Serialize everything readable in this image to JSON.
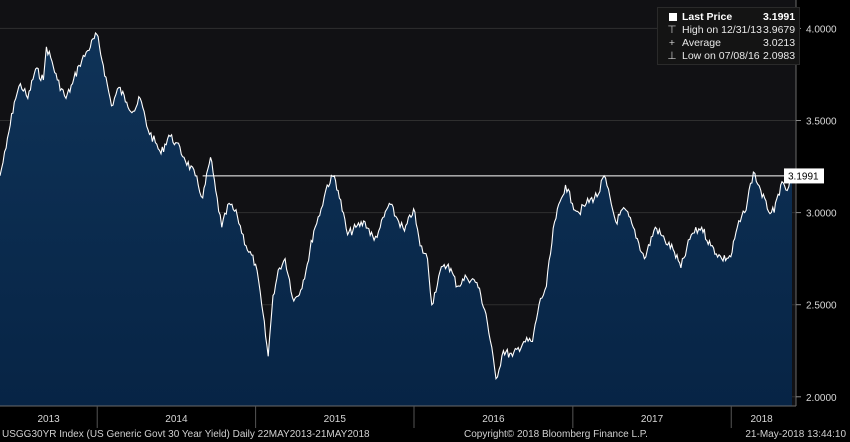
{
  "chart_data": {
    "type": "area",
    "x_start": "2013-05-22",
    "x_end": "2018-05-21",
    "ylim": [
      1.95,
      4.1
    ],
    "yticks": [
      2.0,
      2.5,
      3.0,
      3.5,
      4.0
    ],
    "ytick_labels": [
      "2.0000",
      "2.5000",
      "3.0000",
      "3.5000",
      "4.0000"
    ],
    "xticks": [
      "2013",
      "2014",
      "2015",
      "2016",
      "2017",
      "2018"
    ],
    "last_price_label": "3.1991",
    "last_price_value": 3.1991,
    "points": [
      [
        "2013-05-22",
        3.2
      ],
      [
        "2013-06-05",
        3.35
      ],
      [
        "2013-06-24",
        3.6
      ],
      [
        "2013-07-08",
        3.7
      ],
      [
        "2013-07-25",
        3.62
      ],
      [
        "2013-08-12",
        3.78
      ],
      [
        "2013-08-30",
        3.72
      ],
      [
        "2013-09-06",
        3.9
      ],
      [
        "2013-09-16",
        3.84
      ],
      [
        "2013-10-01",
        3.72
      ],
      [
        "2013-10-21",
        3.62
      ],
      [
        "2013-11-05",
        3.7
      ],
      [
        "2013-11-20",
        3.8
      ],
      [
        "2013-12-10",
        3.88
      ],
      [
        "2013-12-31",
        3.9679
      ],
      [
        "2014-01-15",
        3.8
      ],
      [
        "2014-02-03",
        3.58
      ],
      [
        "2014-02-20",
        3.68
      ],
      [
        "2014-03-10",
        3.6
      ],
      [
        "2014-03-25",
        3.55
      ],
      [
        "2014-04-10",
        3.62
      ],
      [
        "2014-04-28",
        3.45
      ],
      [
        "2014-05-15",
        3.38
      ],
      [
        "2014-05-28",
        3.32
      ],
      [
        "2014-06-15",
        3.42
      ],
      [
        "2014-07-01",
        3.38
      ],
      [
        "2014-07-20",
        3.3
      ],
      [
        "2014-08-15",
        3.2
      ],
      [
        "2014-09-01",
        3.08
      ],
      [
        "2014-09-19",
        3.3
      ],
      [
        "2014-10-01",
        3.12
      ],
      [
        "2014-10-15",
        2.92
      ],
      [
        "2014-11-01",
        3.05
      ],
      [
        "2014-11-20",
        2.98
      ],
      [
        "2014-12-10",
        2.82
      ],
      [
        "2015-01-01",
        2.72
      ],
      [
        "2015-01-15",
        2.5
      ],
      [
        "2015-01-30",
        2.22
      ],
      [
        "2015-02-10",
        2.55
      ],
      [
        "2015-02-25",
        2.7
      ],
      [
        "2015-03-10",
        2.75
      ],
      [
        "2015-03-30",
        2.52
      ],
      [
        "2015-04-15",
        2.58
      ],
      [
        "2015-04-30",
        2.72
      ],
      [
        "2015-05-15",
        2.9
      ],
      [
        "2015-06-01",
        3.02
      ],
      [
        "2015-06-15",
        3.15
      ],
      [
        "2015-07-01",
        3.2
      ],
      [
        "2015-07-10",
        3.12
      ],
      [
        "2015-08-01",
        2.88
      ],
      [
        "2015-08-20",
        2.92
      ],
      [
        "2015-09-10",
        2.95
      ],
      [
        "2015-10-01",
        2.85
      ],
      [
        "2015-10-15",
        2.92
      ],
      [
        "2015-11-05",
        3.05
      ],
      [
        "2015-11-20",
        2.98
      ],
      [
        "2015-12-10",
        2.9
      ],
      [
        "2015-12-31",
        3.02
      ],
      [
        "2016-01-15",
        2.82
      ],
      [
        "2016-02-01",
        2.75
      ],
      [
        "2016-02-11",
        2.5
      ],
      [
        "2016-03-01",
        2.68
      ],
      [
        "2016-03-20",
        2.72
      ],
      [
        "2016-04-10",
        2.6
      ],
      [
        "2016-05-01",
        2.65
      ],
      [
        "2016-05-25",
        2.62
      ],
      [
        "2016-06-15",
        2.45
      ],
      [
        "2016-07-08",
        2.0983
      ],
      [
        "2016-07-25",
        2.25
      ],
      [
        "2016-08-15",
        2.22
      ],
      [
        "2016-09-10",
        2.3
      ],
      [
        "2016-09-30",
        2.3
      ],
      [
        "2016-10-15",
        2.5
      ],
      [
        "2016-11-01",
        2.6
      ],
      [
        "2016-11-20",
        2.95
      ],
      [
        "2016-12-15",
        3.15
      ],
      [
        "2016-12-31",
        3.05
      ],
      [
        "2017-01-15",
        3.0
      ],
      [
        "2017-02-01",
        3.05
      ],
      [
        "2017-03-01",
        3.1
      ],
      [
        "2017-03-14",
        3.2
      ],
      [
        "2017-04-10",
        2.95
      ],
      [
        "2017-05-01",
        3.02
      ],
      [
        "2017-05-20",
        2.92
      ],
      [
        "2017-06-15",
        2.75
      ],
      [
        "2017-07-10",
        2.92
      ],
      [
        "2017-08-01",
        2.85
      ],
      [
        "2017-08-20",
        2.8
      ],
      [
        "2017-09-07",
        2.7
      ],
      [
        "2017-10-01",
        2.88
      ],
      [
        "2017-10-25",
        2.92
      ],
      [
        "2017-11-15",
        2.82
      ],
      [
        "2017-12-10",
        2.75
      ],
      [
        "2017-12-31",
        2.76
      ],
      [
        "2018-01-15",
        2.92
      ],
      [
        "2018-02-01",
        3.0
      ],
      [
        "2018-02-21",
        3.22
      ],
      [
        "2018-03-10",
        3.12
      ],
      [
        "2018-03-25",
        3.02
      ],
      [
        "2018-04-10",
        3.0
      ],
      [
        "2018-04-25",
        3.15
      ],
      [
        "2018-05-10",
        3.12
      ],
      [
        "2018-05-21",
        3.1991
      ]
    ]
  },
  "legend": {
    "items": [
      {
        "mark": "",
        "label": "Last Price",
        "value": "3.1991"
      },
      {
        "mark": "⊤",
        "label": "High on 12/31/13",
        "value": "3.9679"
      },
      {
        "mark": "+",
        "label": "Average",
        "value": "3.0213"
      },
      {
        "mark": "⊥",
        "label": "Low on 07/08/16",
        "value": "2.0983"
      }
    ]
  },
  "footer": {
    "left": "USGG30YR Index (US Generic Govt 30 Year Yield)  Daily 22MAY2013-21MAY2018",
    "middle": "Copyright© 2018 Bloomberg Finance L.P.",
    "right": "21-May-2018 13:44:10"
  },
  "colors": {
    "background": "#000000",
    "plot_background": "#111114",
    "area_fill_top": "#0f3358",
    "area_fill_bottom": "#072445",
    "line": "#ffffff",
    "grid": "#2f2f2f",
    "label_bg": "#ffffff",
    "label_text": "#000000"
  }
}
